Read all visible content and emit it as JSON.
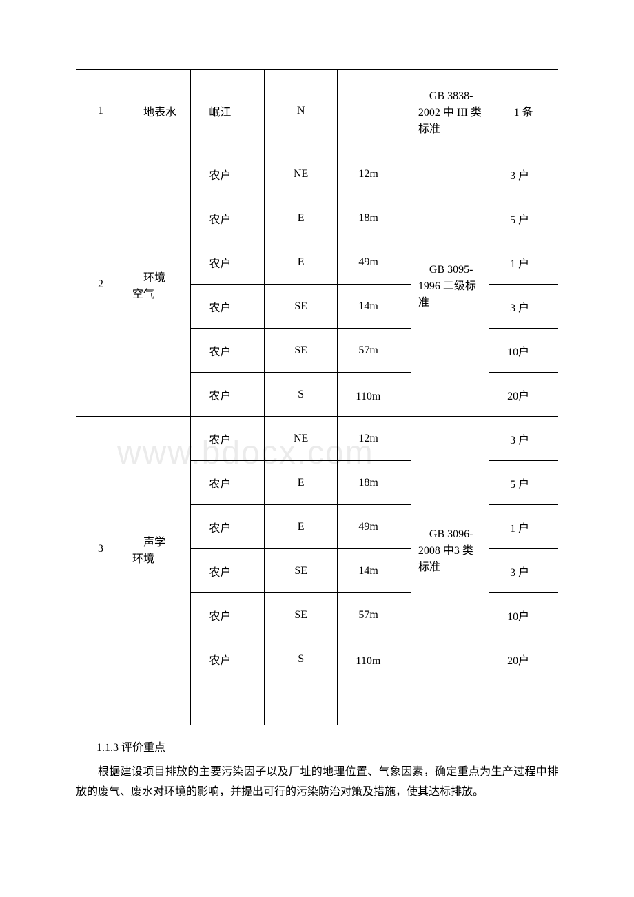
{
  "table": {
    "rows": [
      {
        "idx": "1",
        "category": "　地表水",
        "target": "　岷江",
        "direction": "N",
        "distance": "",
        "standard": "　GB 3838-2002 中 III 类标准",
        "scale": "1 条",
        "tall": true
      },
      {
        "target": "　农户",
        "direction": "NE",
        "distance": "12m",
        "scale": "3 户"
      },
      {
        "target": "　农户",
        "direction": "E",
        "distance": "18m",
        "scale": "5 户"
      },
      {
        "target": "　农户",
        "direction": "E",
        "distance": "49m",
        "scale": "1 户"
      },
      {
        "target": "　农户",
        "direction": "SE",
        "distance": "14m",
        "scale": "3 户"
      },
      {
        "target": "　农户",
        "direction": "SE",
        "distance": "57m",
        "scale": "　10户"
      },
      {
        "target": "　农户",
        "direction": "S",
        "distance": "　110m",
        "scale": "　20户"
      },
      {
        "target": "　农户",
        "direction": "NE",
        "distance": "12m",
        "scale": "3 户"
      },
      {
        "target": "　农户",
        "direction": "E",
        "distance": "18m",
        "scale": "5 户"
      },
      {
        "target": "　农户",
        "direction": "E",
        "distance": "49m",
        "scale": "1 户"
      },
      {
        "target": "　农户",
        "direction": "SE",
        "distance": "14m",
        "scale": "3 户"
      },
      {
        "target": "　农户",
        "direction": "SE",
        "distance": "57m",
        "scale": "　10户"
      },
      {
        "target": "　农户",
        "direction": "S",
        "distance": "　110m",
        "scale": "　20户"
      }
    ],
    "group2": {
      "idx": "2",
      "category": "　环境　空气",
      "standard": "　GB 3095-1996 二级标准"
    },
    "group3": {
      "idx": "3",
      "category": "　声学　环境",
      "standard": "　GB 3096-2008 中3 类标准"
    }
  },
  "section_title": "1.1.3 评价重点",
  "body_text": "根据建设项目排放的主要污染因子以及厂址的地理位置、气象因素，确定重点为生产过程中排放的废气、废水对环境的影响，并提出可行的污染防治对策及措施，使其达标排放。",
  "watermark": "www.bdocx.com"
}
